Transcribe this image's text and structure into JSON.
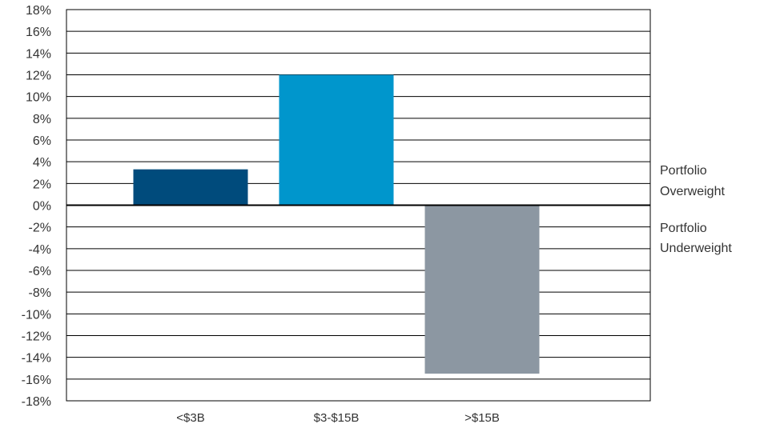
{
  "chart_data": {
    "type": "bar",
    "title": "",
    "xlabel": "",
    "ylabel": "",
    "categories": [
      "<$3B",
      "$3-$15B",
      ">$15B"
    ],
    "values": [
      3.3,
      12.0,
      -15.5
    ],
    "ylim": [
      -18,
      18
    ],
    "y_step": 2,
    "y_tick_format": "percent",
    "grid": true,
    "colors": [
      "#004b7c",
      "#0096cc",
      "#8c97a2"
    ],
    "gridline_color": "#000000",
    "annotations": [
      {
        "id": "overweight",
        "lines": [
          "Portfolio",
          "Overweight"
        ]
      },
      {
        "id": "underweight",
        "lines": [
          "Portfolio",
          "Underweight"
        ]
      }
    ]
  }
}
